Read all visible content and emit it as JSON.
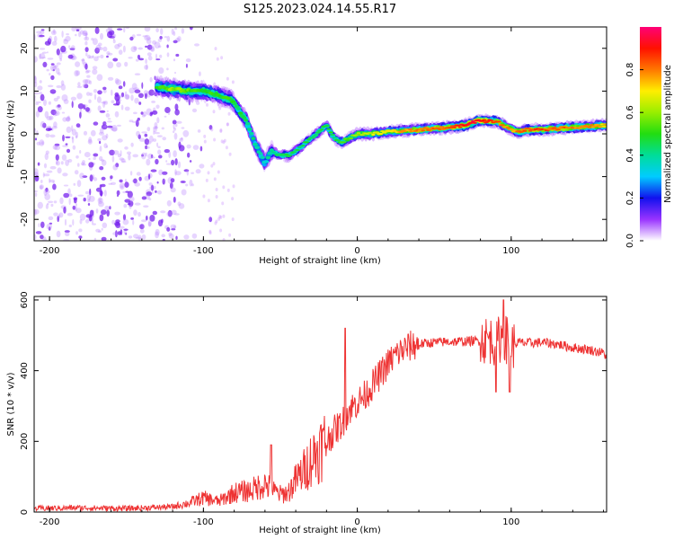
{
  "figure_title": "S125.2023.024.14.55.R17",
  "colorbar": {
    "label": "Normalized spectral amplitude",
    "ticks": [
      "0.0",
      "0.2",
      "0.4",
      "0.6",
      "0.8"
    ],
    "tick_values": [
      0.0,
      0.2,
      0.4,
      0.6,
      0.8
    ],
    "range": [
      0,
      1
    ]
  },
  "chart_data": [
    {
      "type": "heatmap",
      "title": "S125.2023.024.14.55.R17",
      "xlabel": "Height of straight line (km)",
      "ylabel": "Frequency (Hz)",
      "xlim": [
        -210,
        162
      ],
      "ylim": [
        -25,
        25
      ],
      "x_ticks": [
        "-200",
        "-100",
        "0",
        "100"
      ],
      "x_tick_values": [
        -200,
        -100,
        0,
        100
      ],
      "y_ticks": [
        "-20",
        "-10",
        "0",
        "10",
        "20"
      ],
      "y_tick_values": [
        -20,
        -10,
        0,
        10,
        20
      ],
      "ridge": {
        "x": [
          -130,
          -120,
          -110,
          -100,
          -90,
          -82,
          -78,
          -72,
          -68,
          -64,
          -60,
          -56,
          -50,
          -45,
          -40,
          -30,
          -20,
          -15,
          -10,
          -5,
          0,
          10,
          20,
          40,
          60,
          70,
          78,
          85,
          90,
          95,
          100,
          105,
          110,
          120,
          140,
          162
        ],
        "y": [
          11,
          10.5,
          10,
          10,
          9,
          8,
          6,
          3,
          -1,
          -4,
          -7,
          -4,
          -5,
          -5,
          -4,
          -1,
          2,
          -1,
          -2,
          -1,
          0,
          0,
          0.5,
          1,
          1.5,
          2,
          3,
          3,
          3,
          2,
          1,
          0.5,
          1,
          1,
          1.5,
          2
        ],
        "amplitude": [
          0.5,
          0.6,
          0.55,
          0.5,
          0.5,
          0.5,
          0.45,
          0.45,
          0.4,
          0.4,
          0.35,
          0.4,
          0.45,
          0.45,
          0.45,
          0.45,
          0.5,
          0.45,
          0.5,
          0.55,
          0.6,
          0.65,
          0.7,
          0.8,
          0.85,
          0.9,
          0.95,
          0.9,
          0.85,
          0.8,
          0.75,
          0.8,
          0.85,
          0.85,
          0.8,
          0.75
        ]
      },
      "noise_region": {
        "x_range": [
          -210,
          -120
        ],
        "y_range": [
          -25,
          25
        ]
      }
    },
    {
      "type": "line",
      "xlabel": "Height of straight line (km)",
      "ylabel": "SNR (10 * v/v)",
      "xlim": [
        -210,
        162
      ],
      "ylim": [
        0,
        610
      ],
      "x_ticks": [
        "-200",
        "-100",
        "0",
        "100"
      ],
      "x_tick_values": [
        -200,
        -100,
        0,
        100
      ],
      "y_ticks": [
        "0",
        "200",
        "400",
        "600"
      ],
      "y_tick_values": [
        0,
        200,
        400,
        600
      ],
      "color": "#ee3333",
      "series": [
        {
          "name": "SNR",
          "x": [
            -210,
            -180,
            -150,
            -120,
            -110,
            -100,
            -90,
            -80,
            -70,
            -60,
            -55,
            -50,
            -45,
            -40,
            -35,
            -30,
            -25,
            -20,
            -15,
            -10,
            -5,
            0,
            5,
            10,
            15,
            20,
            25,
            30,
            35,
            40,
            50,
            60,
            70,
            80,
            85,
            90,
            95,
            100,
            105,
            110,
            120,
            130,
            140,
            150,
            160,
            162
          ],
          "y": [
            10,
            12,
            10,
            15,
            25,
            40,
            30,
            55,
            60,
            80,
            60,
            50,
            55,
            90,
            115,
            150,
            175,
            200,
            230,
            250,
            290,
            310,
            330,
            360,
            390,
            420,
            445,
            460,
            470,
            475,
            480,
            482,
            483,
            485,
            490,
            480,
            500,
            470,
            480,
            478,
            480,
            475,
            465,
            460,
            450,
            440
          ]
        }
      ],
      "spikes": [
        {
          "x": -56,
          "y": 190
        },
        {
          "x": -8,
          "y": 520
        },
        {
          "x": 95,
          "y": 600
        },
        {
          "x": 90,
          "y": 340
        },
        {
          "x": 99,
          "y": 340
        }
      ]
    }
  ]
}
